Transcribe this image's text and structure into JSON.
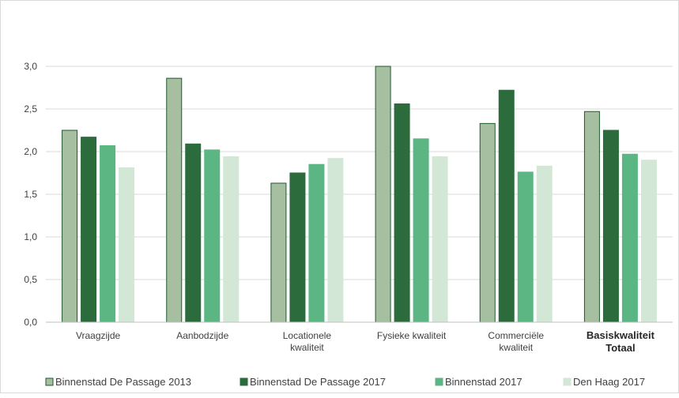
{
  "chart_data": {
    "type": "bar",
    "categories": [
      [
        "Vraagzijde"
      ],
      [
        "Aanbodzijde"
      ],
      [
        "Locationele",
        "kwaliteit"
      ],
      [
        "Fysieke kwaliteit"
      ],
      [
        "Commerciële",
        "kwaliteit"
      ],
      [
        "Basiskwaliteit",
        "Totaal"
      ]
    ],
    "bold_categories": [
      5
    ],
    "series": [
      {
        "name": "Binnenstad De Passage 2013",
        "color": "#a7bfa1",
        "stroke": "#1e5a2e",
        "values": [
          2.25,
          2.86,
          1.63,
          3.0,
          2.33,
          2.47
        ]
      },
      {
        "name": "Binnenstad De Passage 2017",
        "color": "#2c6b3c",
        "stroke": "#2c6b3c",
        "values": [
          2.17,
          2.09,
          1.75,
          2.56,
          2.72,
          2.25
        ]
      },
      {
        "name": "Binnenstad 2017",
        "color": "#5cb684",
        "stroke": "#5cb684",
        "values": [
          2.07,
          2.02,
          1.85,
          2.15,
          1.76,
          1.97
        ]
      },
      {
        "name": "Den Haag 2017",
        "color": "#d3e7d6",
        "stroke": "#d3e7d6",
        "values": [
          1.81,
          1.94,
          1.92,
          1.94,
          1.83,
          1.9
        ]
      }
    ],
    "y_ticks": [
      "0,0",
      "0,5",
      "1,0",
      "1,5",
      "2,0",
      "2,5",
      "3,0"
    ],
    "ylim": [
      0,
      3.0
    ],
    "grid": true,
    "legend": "bottom"
  }
}
